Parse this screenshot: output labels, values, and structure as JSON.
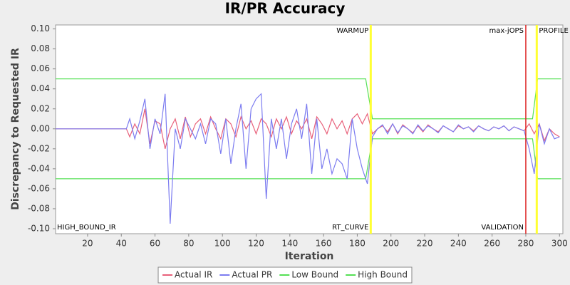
{
  "chart_data": {
    "type": "line",
    "title": "IR/PR Accuracy",
    "x_label": "Iteration",
    "y_label": "Discrepancy to Requested IR",
    "xlim": [
      1,
      302
    ],
    "ylim": [
      -0.105,
      0.104
    ],
    "xticks": [
      20,
      40,
      60,
      80,
      100,
      120,
      140,
      160,
      180,
      200,
      220,
      240,
      260,
      280,
      300
    ],
    "yticks": [
      {
        "value": 0.1,
        "label": "0.10"
      },
      {
        "value": 0.08,
        "label": "0.08"
      },
      {
        "value": 0.06,
        "label": "0.06"
      },
      {
        "value": 0.04,
        "label": "0.04"
      },
      {
        "value": 0.02,
        "label": "0.02"
      },
      {
        "value": 0,
        "label": "0.00"
      },
      {
        "value": -0.02,
        "label": "-0.02"
      },
      {
        "value": -0.04,
        "label": "-0.04"
      },
      {
        "value": -0.06,
        "label": "-0.06"
      },
      {
        "value": -0.08,
        "label": "-0.08"
      },
      {
        "value": -0.1,
        "label": "-0.10"
      }
    ],
    "grid": false,
    "legend": "bottom",
    "series": [
      {
        "name": "Actual IR",
        "color": "#e8607a",
        "x": [
          1,
          43,
          45,
          48,
          51,
          54,
          57,
          60,
          63,
          66,
          69,
          72,
          75,
          78,
          81,
          84,
          87,
          90,
          93,
          96,
          99,
          102,
          105,
          108,
          111,
          114,
          117,
          120,
          123,
          126,
          129,
          132,
          135,
          138,
          141,
          144,
          147,
          150,
          153,
          156,
          159,
          162,
          165,
          168,
          171,
          174,
          177,
          180,
          183,
          186,
          189,
          192,
          195,
          198,
          201,
          204,
          207,
          210,
          213,
          216,
          219,
          222,
          225,
          228,
          231,
          234,
          237,
          240,
          243,
          246,
          249,
          252,
          255,
          258,
          261,
          264,
          267,
          270,
          273,
          276,
          279,
          282,
          285,
          288,
          291,
          294,
          297,
          300
        ],
        "values": [
          0,
          0,
          -0.008,
          0.005,
          -0.005,
          0.02,
          -0.015,
          0.008,
          0.005,
          -0.02,
          0,
          0.01,
          -0.01,
          0.012,
          -0.008,
          0.005,
          0.01,
          -0.005,
          0.012,
          0,
          -0.01,
          0.01,
          0.005,
          -0.008,
          0.012,
          0,
          0.008,
          -0.005,
          0.01,
          0.005,
          -0.008,
          0.01,
          0,
          0.012,
          -0.005,
          0.008,
          0,
          0.01,
          -0.01,
          0.012,
          0.005,
          -0.005,
          0.01,
          0,
          0.008,
          -0.005,
          0.01,
          0.015,
          0.005,
          0.015,
          -0.005,
          0,
          0.003,
          -0.003,
          0.005,
          -0.005,
          0.004,
          0,
          -0.004,
          0.003,
          -0.003,
          0.004,
          0,
          -0.003,
          0.003,
          0,
          -0.003,
          0.003,
          0,
          0.002,
          -0.002,
          0.003,
          0,
          -0.002,
          0.002,
          0,
          0.003,
          -0.002,
          0.002,
          0,
          -0.002,
          0.005,
          -0.005,
          0.005,
          -0.012,
          0,
          -0.005,
          -0.008
        ]
      },
      {
        "name": "Actual PR",
        "color": "#7c7cf0",
        "x": [
          1,
          43,
          45,
          48,
          51,
          54,
          57,
          60,
          63,
          66,
          69,
          72,
          75,
          78,
          81,
          84,
          87,
          90,
          93,
          96,
          99,
          102,
          105,
          108,
          111,
          114,
          117,
          120,
          123,
          126,
          129,
          132,
          135,
          138,
          141,
          144,
          147,
          150,
          153,
          156,
          159,
          162,
          165,
          168,
          171,
          174,
          177,
          180,
          183,
          186,
          189,
          192,
          195,
          198,
          201,
          204,
          207,
          210,
          213,
          216,
          219,
          222,
          225,
          228,
          231,
          234,
          237,
          240,
          243,
          246,
          249,
          252,
          255,
          258,
          261,
          264,
          267,
          270,
          273,
          276,
          279,
          282,
          285,
          288,
          291,
          294,
          297,
          300
        ],
        "values": [
          0,
          0,
          0.01,
          -0.01,
          0.008,
          0.03,
          -0.02,
          0.01,
          -0.005,
          0.035,
          -0.095,
          0,
          -0.02,
          0.01,
          0,
          -0.01,
          0.005,
          -0.015,
          0.01,
          0.005,
          -0.025,
          0.01,
          -0.035,
          0,
          0.025,
          -0.04,
          0.02,
          0.03,
          0.035,
          -0.07,
          0.01,
          -0.02,
          0.01,
          -0.03,
          0.005,
          0.02,
          -0.01,
          0.025,
          -0.045,
          0.01,
          -0.04,
          -0.02,
          -0.045,
          -0.03,
          -0.035,
          -0.05,
          0.01,
          -0.02,
          -0.04,
          -0.055,
          -0.008,
          0,
          0.004,
          -0.005,
          0.005,
          -0.004,
          0.003,
          0,
          -0.005,
          0.004,
          -0.002,
          0.003,
          0,
          -0.004,
          0.003,
          0,
          -0.003,
          0.004,
          0,
          0.002,
          -0.003,
          0.003,
          0,
          -0.002,
          0.002,
          0,
          0.003,
          -0.002,
          0.002,
          0,
          -0.002,
          -0.02,
          -0.045,
          0.005,
          -0.015,
          0,
          -0.01,
          -0.008
        ]
      },
      {
        "name": "Low Bound",
        "color": "#55e055",
        "x": [
          1,
          185,
          189,
          284,
          287,
          301
        ],
        "values": [
          -0.05,
          -0.05,
          -0.01,
          -0.01,
          -0.05,
          -0.05
        ]
      },
      {
        "name": "High Bound",
        "color": "#55e055",
        "x": [
          1,
          185,
          189,
          284,
          287,
          301
        ],
        "values": [
          0.05,
          0.05,
          0.01,
          0.01,
          0.05,
          0.05
        ]
      }
    ],
    "markers": [
      {
        "x": 188,
        "color": "#ffff33",
        "top_label": "WARMUP",
        "bottom_label": "RT_CURVE"
      },
      {
        "x": 280,
        "color": "#dd2222",
        "top_label": "max-jOPS",
        "bottom_label": "VALIDATION"
      },
      {
        "x": 286.5,
        "color": "#ffff33",
        "top_label": "PROFILE"
      }
    ],
    "corner_note": "HIGH_BOUND_IR"
  }
}
